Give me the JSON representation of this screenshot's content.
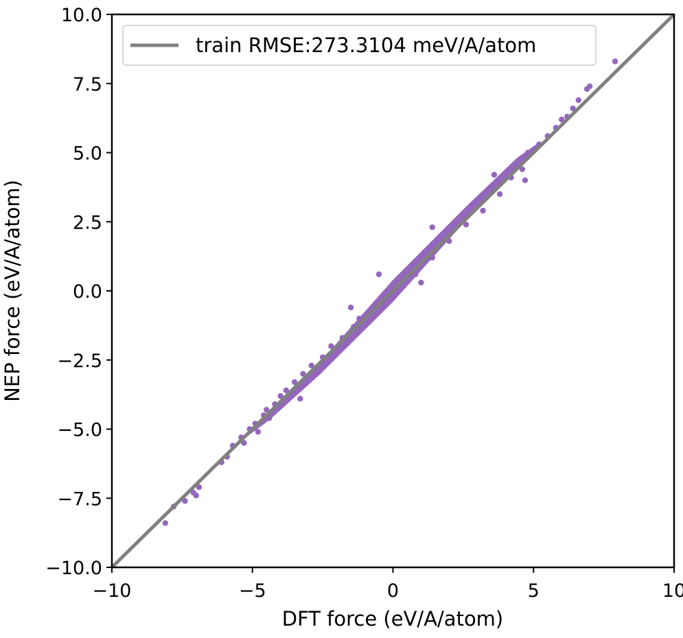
{
  "chart_data": {
    "type": "scatter",
    "xlabel": "DFT force (eV/A/atom)",
    "ylabel": "NEP force (eV/A/atom)",
    "xlim": [
      -10,
      10
    ],
    "ylim": [
      -10,
      10
    ],
    "x_ticks": [
      -10,
      -5,
      0,
      5,
      10
    ],
    "y_ticks": [
      -10.0,
      -7.5,
      -5.0,
      -2.5,
      0.0,
      2.5,
      5.0,
      7.5,
      10.0
    ],
    "x_tick_labels": [
      "−10",
      "−5",
      "0",
      "5",
      "10"
    ],
    "y_tick_labels": [
      "−10.0",
      "−7.5",
      "−5.0",
      "−2.5",
      "0.0",
      "2.5",
      "5.0",
      "7.5",
      "10.0"
    ],
    "legend_position": "upper-left",
    "grid": false,
    "series": [
      {
        "name": "train RMSE:273.3104 meV/A/atom",
        "kind": "line",
        "color": "#808080",
        "x": [
          -10,
          10
        ],
        "y": [
          -10,
          10
        ]
      },
      {
        "kind": "scatter",
        "color": "#9467bd",
        "points": [
          [
            -8.1,
            -8.4
          ],
          [
            -7.8,
            -7.8
          ],
          [
            -7.4,
            -7.6
          ],
          [
            -7.1,
            -7.3
          ],
          [
            -6.9,
            -7.1
          ],
          [
            -7.0,
            -7.4
          ],
          [
            -6.1,
            -6.2
          ],
          [
            -5.9,
            -6.0
          ],
          [
            -5.7,
            -5.6
          ],
          [
            -5.4,
            -5.3
          ],
          [
            -5.3,
            -5.5
          ],
          [
            -5.1,
            -5.0
          ],
          [
            -4.9,
            -4.8
          ],
          [
            -4.8,
            -5.1
          ],
          [
            -4.6,
            -4.5
          ],
          [
            -4.5,
            -4.3
          ],
          [
            -4.4,
            -4.6
          ],
          [
            -4.2,
            -4.1
          ],
          [
            -4.0,
            -3.8
          ],
          [
            -4.1,
            -4.2
          ],
          [
            -3.8,
            -3.6
          ],
          [
            -3.6,
            -3.7
          ],
          [
            -3.5,
            -3.3
          ],
          [
            -3.4,
            -3.6
          ],
          [
            -3.2,
            -3.0
          ],
          [
            -3.0,
            -3.1
          ],
          [
            -2.9,
            -2.7
          ],
          [
            -2.7,
            -2.8
          ],
          [
            -2.5,
            -2.4
          ],
          [
            -2.4,
            -2.6
          ],
          [
            -2.2,
            -2.0
          ],
          [
            -2.0,
            -2.1
          ],
          [
            -1.8,
            -1.7
          ],
          [
            -1.6,
            -1.8
          ],
          [
            -1.4,
            -1.3
          ],
          [
            -1.2,
            -1.0
          ],
          [
            -1.0,
            -1.2
          ],
          [
            -0.8,
            -0.7
          ],
          [
            -0.6,
            -0.5
          ],
          [
            -0.4,
            -0.6
          ],
          [
            -0.2,
            -0.1
          ],
          [
            0.0,
            0.1
          ],
          [
            0.2,
            0.0
          ],
          [
            0.4,
            0.5
          ],
          [
            0.6,
            0.7
          ],
          [
            0.8,
            0.6
          ],
          [
            1.0,
            1.1
          ],
          [
            1.2,
            1.3
          ],
          [
            1.4,
            1.2
          ],
          [
            1.6,
            1.8
          ],
          [
            1.8,
            1.9
          ],
          [
            2.0,
            1.8
          ],
          [
            2.2,
            2.4
          ],
          [
            2.4,
            2.5
          ],
          [
            2.6,
            2.4
          ],
          [
            2.8,
            3.0
          ],
          [
            3.0,
            3.1
          ],
          [
            3.2,
            2.9
          ],
          [
            3.4,
            3.6
          ],
          [
            3.6,
            3.7
          ],
          [
            3.8,
            3.5
          ],
          [
            4.0,
            4.2
          ],
          [
            4.2,
            4.1
          ],
          [
            4.4,
            4.6
          ],
          [
            4.6,
            4.4
          ],
          [
            4.8,
            5.0
          ],
          [
            5.0,
            5.1
          ],
          [
            5.2,
            5.3
          ],
          [
            5.5,
            5.6
          ],
          [
            5.8,
            5.9
          ],
          [
            6.0,
            6.2
          ],
          [
            6.2,
            6.3
          ],
          [
            6.4,
            6.6
          ],
          [
            6.6,
            6.9
          ],
          [
            6.9,
            7.3
          ],
          [
            7.0,
            7.4
          ],
          [
            7.9,
            8.3
          ],
          [
            4.7,
            4.0
          ],
          [
            1.0,
            0.3
          ],
          [
            -1.5,
            -0.6
          ],
          [
            -0.5,
            0.6
          ],
          [
            1.4,
            2.3
          ],
          [
            3.6,
            4.2
          ],
          [
            -3.3,
            -3.9
          ]
        ]
      }
    ]
  }
}
